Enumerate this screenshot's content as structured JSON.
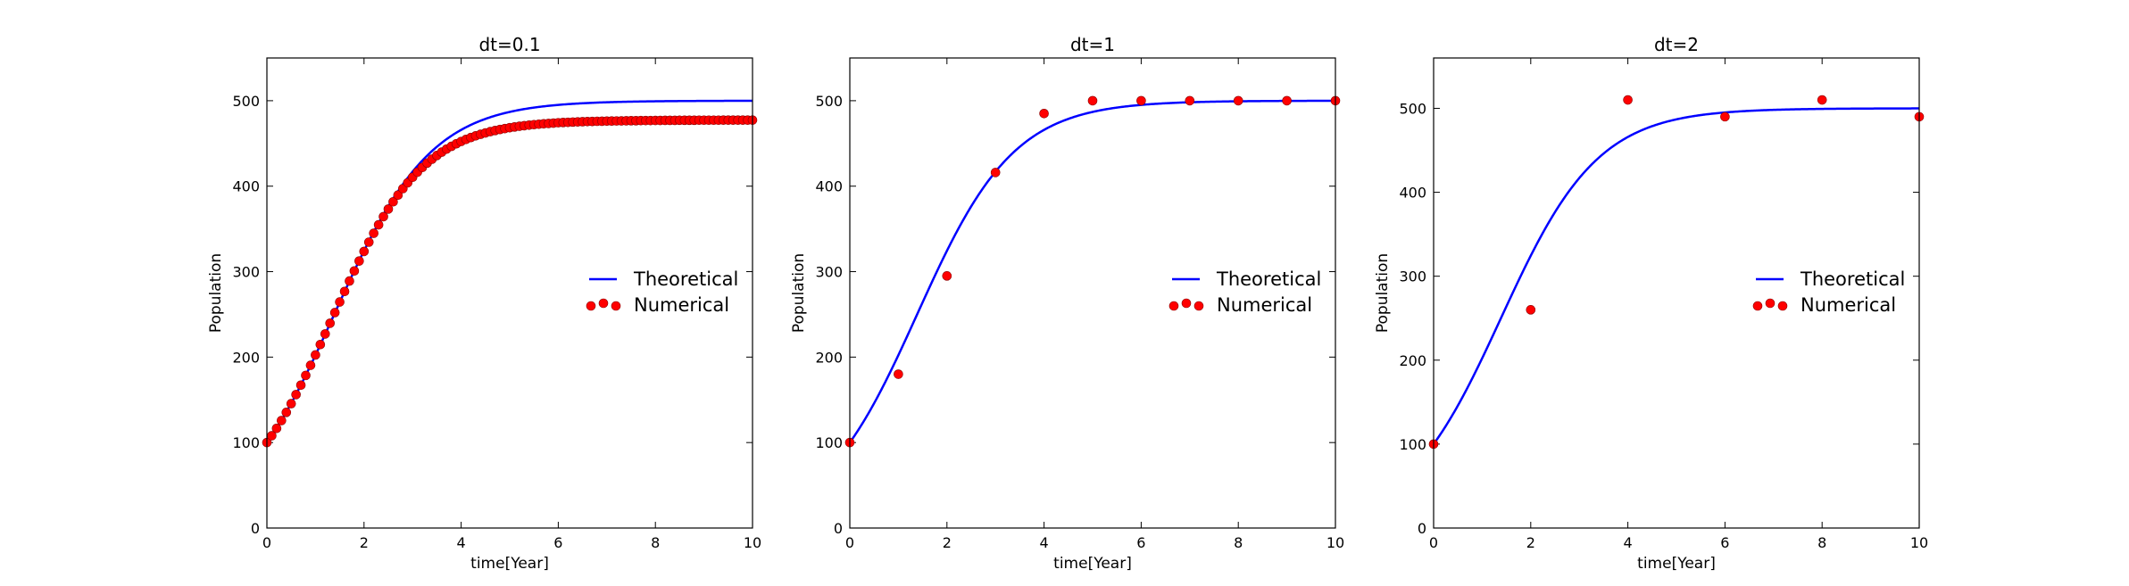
{
  "chart_data": [
    {
      "type": "line+scatter",
      "title": "dt=0.1",
      "xlabel": "time[Year]",
      "ylabel": "Population",
      "xlim": [
        0,
        10
      ],
      "ylim": [
        0,
        550
      ],
      "xticks": [
        0,
        2,
        4,
        6,
        8,
        10
      ],
      "yticks": [
        0,
        100,
        200,
        300,
        400,
        500
      ],
      "legend_position": "center-right",
      "series": [
        {
          "name": "Theoretical",
          "kind": "line",
          "color": "#0000ff",
          "model": {
            "P0": 100,
            "K": 500,
            "r": 1.0
          }
        },
        {
          "name": "Numerical",
          "kind": "scatter",
          "color": "#ff0000",
          "x": [
            0,
            0.1,
            0.2,
            0.3,
            0.4,
            0.5,
            0.6,
            0.7,
            0.8,
            0.9,
            1.0,
            1.1,
            1.2,
            1.3,
            1.4,
            1.5,
            1.6,
            1.7,
            1.8,
            1.9,
            2.0,
            2.1,
            2.2,
            2.3,
            2.4,
            2.5,
            2.6,
            2.7,
            2.8,
            2.9,
            3.0,
            3.1,
            3.2,
            3.3,
            3.4,
            3.5,
            3.6,
            3.7,
            3.8,
            3.9,
            4.0,
            4.1,
            4.2,
            4.3,
            4.4,
            4.5,
            4.6,
            4.7,
            4.8,
            4.9,
            5.0,
            5.1,
            5.2,
            5.3,
            5.4,
            5.5,
            5.6,
            5.7,
            5.8,
            5.9,
            6.0,
            6.1,
            6.2,
            6.3,
            6.4,
            6.5,
            6.6,
            6.7,
            6.8,
            6.9,
            7.0,
            7.1,
            7.2,
            7.3,
            7.4,
            7.5,
            7.6,
            7.7,
            7.8,
            7.9,
            8.0,
            8.1,
            8.2,
            8.3,
            8.4,
            8.5,
            8.6,
            8.7,
            8.8,
            8.9,
            9.0,
            9.1,
            9.2,
            9.3,
            9.4,
            9.5,
            9.6,
            9.7,
            9.8,
            9.9,
            10.0
          ],
          "y": [
            100,
            108,
            116.6,
            125.7,
            135.3,
            145.5,
            156.1,
            167.2,
            178.6,
            190.4,
            202.5,
            214.7,
            227.1,
            239.6,
            252.1,
            264.5,
            276.8,
            289,
            300.8,
            312.4,
            323.6,
            334.5,
            344.9,
            354.8,
            364.3,
            373.2,
            381.7,
            389.6,
            397.1,
            404,
            410.4,
            416.4,
            421.9,
            427.0,
            431.6,
            435.9,
            439.8,
            443.4,
            446.6,
            449.6,
            452.3,
            454.7,
            456.9,
            458.9,
            460.7,
            462.3,
            463.8,
            465.1,
            466.3,
            467.4,
            468.4,
            469.3,
            470.1,
            470.8,
            471.4,
            472.0,
            472.5,
            473.0,
            473.4,
            473.8,
            474.2,
            474.5,
            474.7,
            475.0,
            475.2,
            475.4,
            475.6,
            475.7,
            475.9,
            476.0,
            476.1,
            476.2,
            476.3,
            476.4,
            476.5,
            476.6,
            476.6,
            476.7,
            476.8,
            476.8,
            476.9,
            476.9,
            477.0,
            477.0,
            477.0,
            477.1,
            477.1,
            477.1,
            477.1,
            477.2,
            477.2,
            477.2,
            477.2,
            477.2,
            477.3,
            477.3,
            477.3,
            477.3,
            477.3,
            477.3,
            477.3
          ]
        }
      ]
    },
    {
      "type": "line+scatter",
      "title": "dt=1",
      "xlabel": "time[Year]",
      "ylabel": "Population",
      "xlim": [
        0,
        10
      ],
      "ylim": [
        0,
        550
      ],
      "xticks": [
        0,
        2,
        4,
        6,
        8,
        10
      ],
      "yticks": [
        0,
        100,
        200,
        300,
        400,
        500
      ],
      "legend_position": "center-right",
      "series": [
        {
          "name": "Theoretical",
          "kind": "line",
          "color": "#0000ff",
          "model": {
            "P0": 100,
            "K": 500,
            "r": 1.0
          }
        },
        {
          "name": "Numerical",
          "kind": "scatter",
          "color": "#ff0000",
          "x": [
            0,
            1,
            2,
            3,
            4,
            5,
            6,
            7,
            8,
            9,
            10
          ],
          "y": [
            100,
            180,
            295,
            416,
            485,
            500,
            500,
            500,
            500,
            500,
            500
          ]
        }
      ]
    },
    {
      "type": "line+scatter",
      "title": "dt=2",
      "xlabel": "time[Year]",
      "ylabel": "Population",
      "xlim": [
        0,
        10
      ],
      "ylim": [
        0,
        560
      ],
      "xticks": [
        0,
        2,
        4,
        6,
        8,
        10
      ],
      "yticks": [
        0,
        100,
        200,
        300,
        400,
        500
      ],
      "legend_position": "center-right",
      "series": [
        {
          "name": "Theoretical",
          "kind": "line",
          "color": "#0000ff",
          "model": {
            "P0": 100,
            "K": 500,
            "r": 1.0
          }
        },
        {
          "name": "Numerical",
          "kind": "scatter",
          "color": "#ff0000",
          "x": [
            0,
            2,
            4,
            6,
            8,
            10
          ],
          "y": [
            100,
            260,
            510,
            490,
            510,
            490
          ]
        }
      ]
    }
  ]
}
